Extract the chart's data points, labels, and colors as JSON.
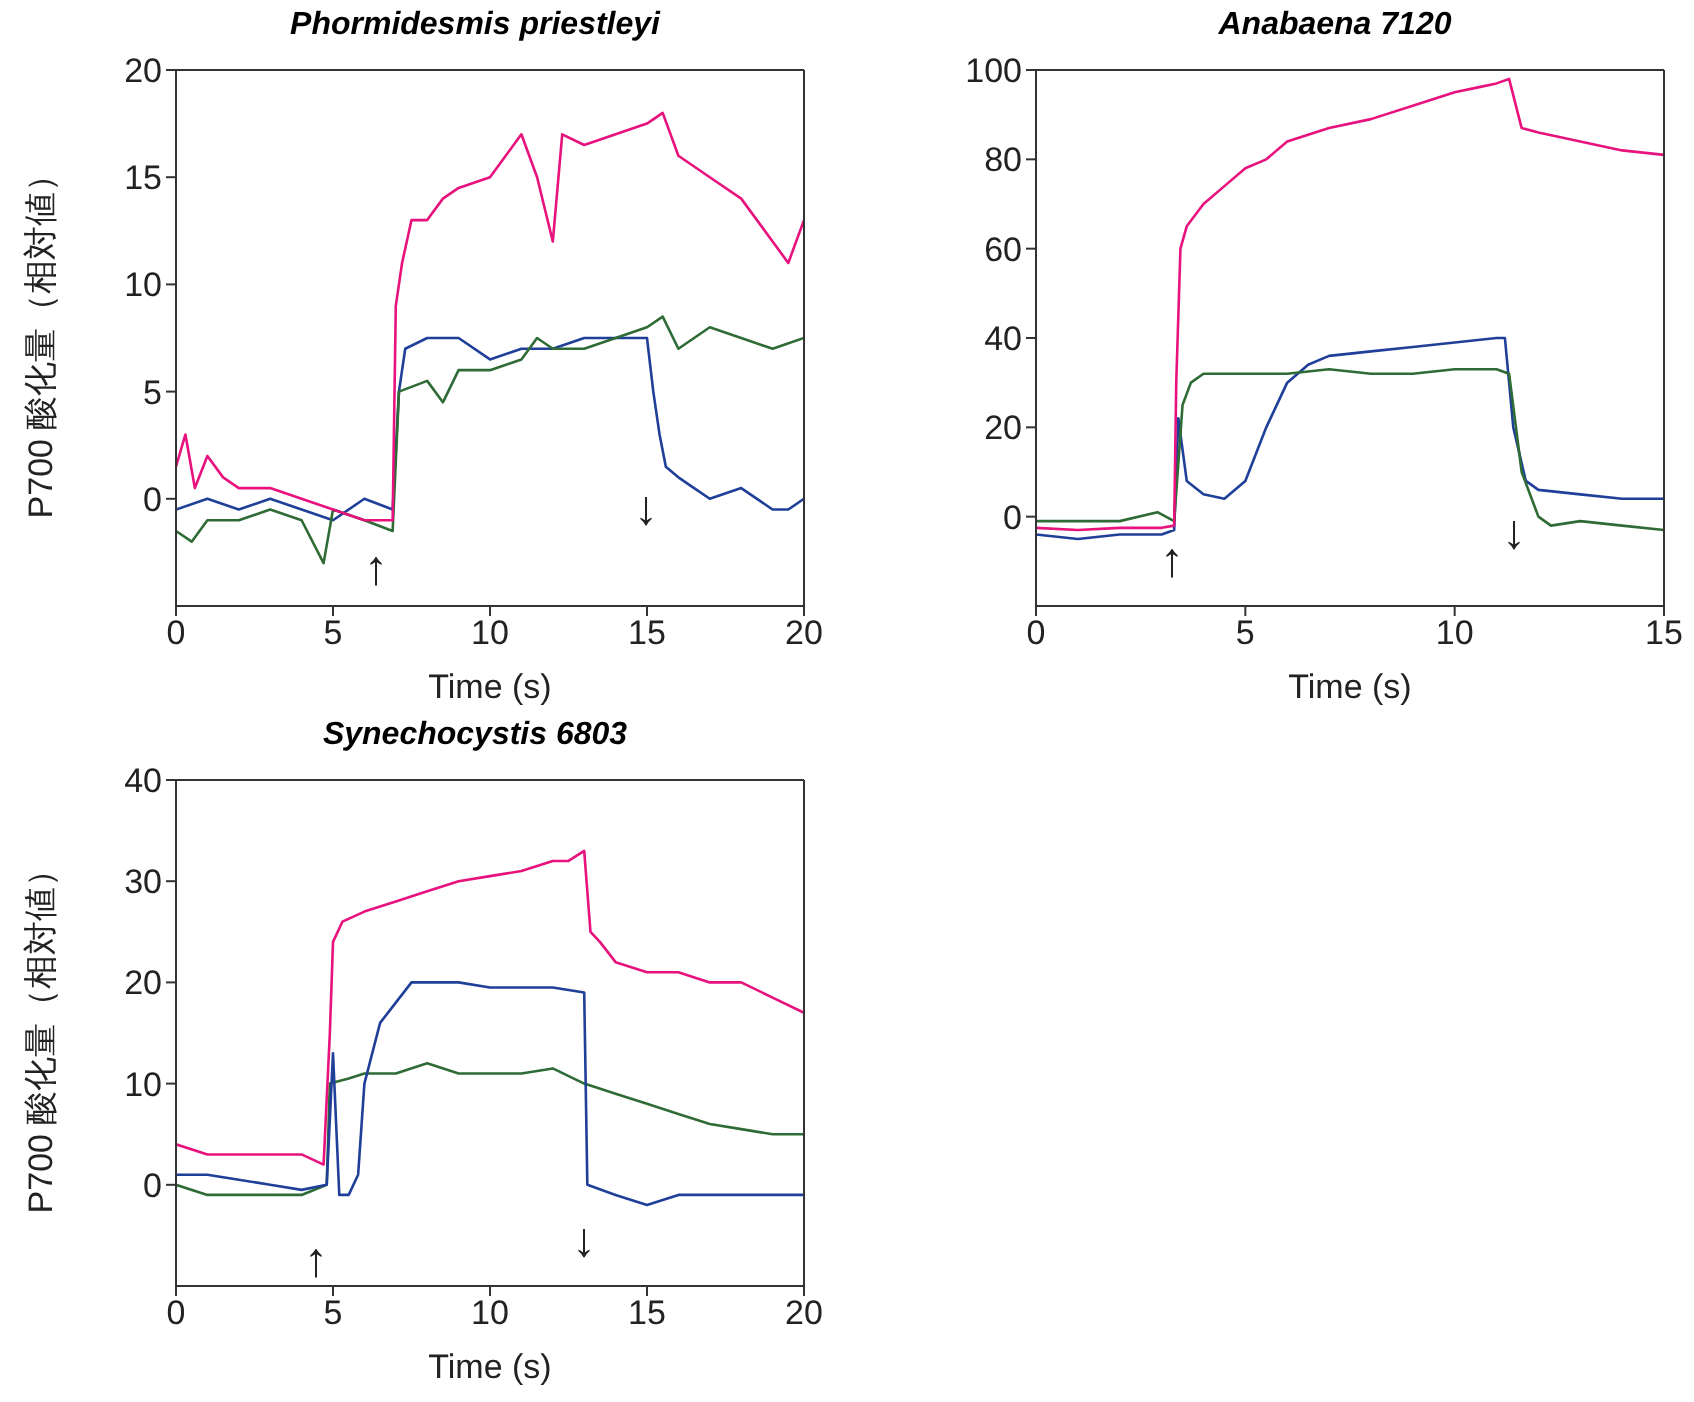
{
  "chart_data": [
    {
      "type": "line",
      "title": "Phormidesmis priestleyi",
      "xlabel": "Time (s)",
      "ylabel": "P700 酸化量（相対値）",
      "xlim": [
        0,
        20
      ],
      "xticks": [
        0,
        5,
        10,
        15,
        20
      ],
      "ylim": [
        -5,
        20
      ],
      "yticks": [
        0,
        5,
        10,
        15,
        20
      ],
      "series": [
        {
          "color": "#1f3f99",
          "x": [
            0,
            1,
            2,
            3,
            4,
            5,
            6,
            6.9,
            7.1,
            7.3,
            8,
            9,
            10,
            11,
            12,
            13,
            14,
            15,
            15.2,
            15.4,
            15.6,
            16,
            16.5,
            17,
            18,
            19,
            19.5,
            20
          ],
          "values": [
            -0.5,
            0,
            -0.5,
            0,
            -0.5,
            -1,
            0,
            -0.5,
            5,
            7,
            7.5,
            7.5,
            6.5,
            7,
            7,
            7.5,
            7.5,
            7.5,
            5,
            3,
            1.5,
            1,
            0.5,
            0,
            0.5,
            -0.5,
            -0.5,
            0
          ]
        },
        {
          "color": "#2f6b35",
          "x": [
            0,
            0.5,
            1,
            2,
            3,
            4,
            4.7,
            5,
            6,
            6.9,
            7.1,
            8,
            8.5,
            9,
            10,
            11,
            11.5,
            12,
            13,
            14,
            15,
            15.5,
            16,
            17,
            18,
            19,
            20
          ],
          "values": [
            -1.5,
            -2,
            -1,
            -1,
            -0.5,
            -1,
            -3,
            -0.5,
            -1,
            -1.5,
            5,
            5.5,
            4.5,
            6,
            6,
            6.5,
            7.5,
            7,
            7,
            7.5,
            8,
            8.5,
            7,
            8,
            7.5,
            7,
            7.5
          ]
        },
        {
          "color": "#e8127e",
          "x": [
            0,
            0.3,
            0.6,
            1,
            1.5,
            2,
            3,
            4,
            5,
            6,
            6.9,
            7,
            7.2,
            7.5,
            8,
            8.5,
            9,
            10,
            10.5,
            11,
            11.5,
            12,
            12.3,
            13,
            14,
            15,
            15.5,
            16,
            17,
            18,
            19,
            19.5,
            20
          ],
          "values": [
            1.5,
            3,
            0.5,
            2,
            1,
            0.5,
            0.5,
            0,
            -0.5,
            -1,
            -1,
            9,
            11,
            13,
            13,
            14,
            14.5,
            15,
            16,
            17,
            15,
            12,
            17,
            16.5,
            17,
            17.5,
            18,
            16,
            15,
            14,
            12,
            11,
            13
          ]
        }
      ],
      "annotations": [
        "↑",
        "↓"
      ]
    },
    {
      "type": "line",
      "title": "Anabaena 7120",
      "xlabel": "Time (s)",
      "xlim": [
        0,
        15
      ],
      "xticks": [
        0,
        5,
        10,
        15
      ],
      "ylim": [
        -20,
        100
      ],
      "yticks": [
        0,
        20,
        40,
        60,
        80,
        100
      ],
      "series": [
        {
          "color": "#1f3f99",
          "x": [
            0,
            1,
            2,
            3,
            3.3,
            3.4,
            3.6,
            4,
            4.5,
            5,
            5.5,
            6,
            6.5,
            7,
            8,
            9,
            10,
            11,
            11.2,
            11.4,
            11.7,
            12,
            13,
            14,
            15
          ],
          "values": [
            -4,
            -5,
            -4,
            -4,
            -3,
            22,
            8,
            5,
            4,
            8,
            20,
            30,
            34,
            36,
            37,
            38,
            39,
            40,
            40,
            20,
            8,
            6,
            5,
            4,
            4
          ]
        },
        {
          "color": "#2f6b35",
          "x": [
            0,
            1,
            2,
            2.9,
            3.3,
            3.5,
            3.7,
            4,
            5,
            6,
            7,
            8,
            9,
            10,
            11,
            11.3,
            11.6,
            12,
            12.3,
            13,
            14,
            15
          ],
          "values": [
            -1,
            -1,
            -1,
            1,
            -1,
            25,
            30,
            32,
            32,
            32,
            33,
            32,
            32,
            33,
            33,
            32,
            10,
            0,
            -2,
            -1,
            -2,
            -3
          ]
        },
        {
          "color": "#e8127e",
          "x": [
            0,
            1,
            2,
            3,
            3.3,
            3.35,
            3.45,
            3.6,
            4,
            4.5,
            5,
            5.5,
            6,
            7,
            8,
            9,
            10,
            10.5,
            11,
            11.3,
            11.6,
            12,
            13,
            14,
            15
          ],
          "values": [
            -2.5,
            -3,
            -2.5,
            -2.5,
            -2,
            30,
            60,
            65,
            70,
            74,
            78,
            80,
            84,
            87,
            89,
            92,
            95,
            96,
            97,
            98,
            87,
            86,
            84,
            82,
            81
          ]
        }
      ],
      "annotations": [
        "↑",
        "↓"
      ]
    },
    {
      "type": "line",
      "title": "Synechocystis 6803",
      "xlabel": "Time (s)",
      "ylabel": "P700 酸化量（相対値）",
      "xlim": [
        0,
        20
      ],
      "xticks": [
        0,
        5,
        10,
        15,
        20
      ],
      "ylim": [
        -10,
        40
      ],
      "yticks": [
        0,
        10,
        20,
        30,
        40
      ],
      "series": [
        {
          "color": "#2f6b35",
          "x": [
            0,
            1,
            2,
            3,
            4,
            4.8,
            4.9,
            5.5,
            6,
            7,
            8,
            9,
            10,
            11,
            12,
            13,
            14,
            15,
            16,
            17,
            18,
            19,
            20
          ],
          "values": [
            0,
            -1,
            -1,
            -1,
            -1,
            0,
            10,
            10.5,
            11,
            11,
            12,
            11,
            11,
            11,
            11.5,
            10,
            9,
            8,
            7,
            6,
            5.5,
            5,
            5
          ]
        },
        {
          "color": "#1f3f99",
          "x": [
            0,
            1,
            2,
            3,
            4,
            4.8,
            5,
            5.2,
            5.5,
            5.8,
            6,
            6.5,
            7,
            7.5,
            8,
            9,
            10,
            11,
            12,
            13,
            13.1,
            14,
            15,
            16,
            17,
            18,
            19,
            20
          ],
          "values": [
            1,
            1,
            0.5,
            0,
            -0.5,
            0,
            13,
            -1,
            -1,
            1,
            10,
            16,
            18,
            20,
            20,
            20,
            19.5,
            19.5,
            19.5,
            19,
            0,
            -1,
            -2,
            -1,
            -1,
            -1,
            -1,
            -1
          ]
        },
        {
          "color": "#e8127e",
          "x": [
            0,
            1,
            2,
            3,
            4,
            4.7,
            4.9,
            5,
            5.3,
            6,
            7,
            8,
            9,
            10,
            11,
            12,
            12.5,
            13,
            13.2,
            13.5,
            14,
            15,
            16,
            17,
            18,
            19,
            20
          ],
          "values": [
            4,
            3,
            3,
            3,
            3,
            2,
            15,
            24,
            26,
            27,
            28,
            29,
            30,
            30.5,
            31,
            32,
            32,
            33,
            25,
            24,
            22,
            21,
            21,
            20,
            20,
            18.5,
            17
          ]
        }
      ],
      "annotations": [
        "↑",
        "↓"
      ]
    }
  ]
}
